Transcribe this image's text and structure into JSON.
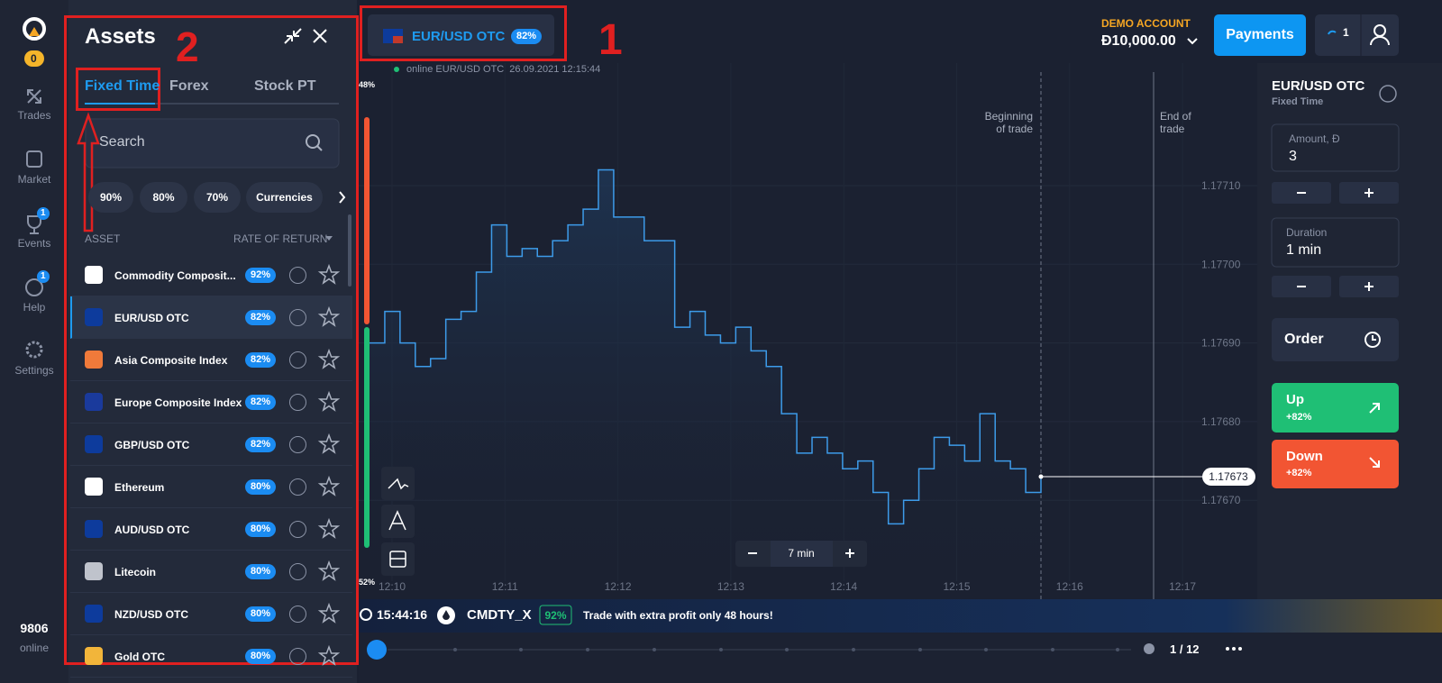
{
  "sidebar": {
    "logo_badge": "0",
    "items": [
      {
        "label": "Trades"
      },
      {
        "label": "Market"
      },
      {
        "label": "Events",
        "badge": "1"
      },
      {
        "label": "Help",
        "badge": "1"
      },
      {
        "label": "Settings"
      }
    ],
    "online_count": "9806",
    "online_label": "online"
  },
  "assets_panel": {
    "title": "Assets",
    "tabs": [
      "Fixed Time",
      "Forex",
      "Stock PT"
    ],
    "search_placeholder": "Search",
    "filters": [
      "90%",
      "80%",
      "70%",
      "Currencies"
    ],
    "columns": [
      "ASSET",
      "RATE OF RETURN"
    ],
    "rows": [
      {
        "name": "Commodity Composit...",
        "rate": "92%"
      },
      {
        "name": "EUR/USD OTC",
        "rate": "82%"
      },
      {
        "name": "Asia Composite Index",
        "rate": "82%"
      },
      {
        "name": "Europe Composite Index",
        "rate": "82%"
      },
      {
        "name": "GBP/USD OTC",
        "rate": "82%"
      },
      {
        "name": "Ethereum",
        "rate": "80%"
      },
      {
        "name": "AUD/USD OTC",
        "rate": "80%"
      },
      {
        "name": "Litecoin",
        "rate": "80%"
      },
      {
        "name": "NZD/USD OTC",
        "rate": "80%"
      },
      {
        "name": "Gold OTC",
        "rate": "80%"
      }
    ]
  },
  "top_bar": {
    "asset": "EUR/USD OTC",
    "rate": "82%",
    "status": "online EUR/USD OTC  26.09.2021 12:15:44",
    "account_label": "DEMO ACCOUNT",
    "balance": "Đ10,000.00",
    "payments": "Payments",
    "trades_count": "1"
  },
  "chart": {
    "type": "line",
    "color": "#3d9be9",
    "sentiment_top": "48%",
    "sentiment_bottom": "52%",
    "begin_marker": [
      "Beginning",
      "of trade"
    ],
    "end_marker": [
      "End of",
      "trade"
    ],
    "xticks": [
      "12:10",
      "12:11",
      "12:12",
      "12:13",
      "12:14",
      "12:15",
      "12:16",
      "12:17"
    ],
    "ylim": [
      1.17658,
      1.17725
    ],
    "yticks": [
      {
        "value": 1.1767,
        "label": "1.17670"
      },
      {
        "value": 1.1768,
        "label": "1.17680"
      },
      {
        "value": 1.1769,
        "label": "1.17690"
      },
      {
        "value": 1.177,
        "label": "1.17700"
      },
      {
        "value": 1.1771,
        "label": "1.17710"
      }
    ],
    "values": [
      1.1769,
      1.17694,
      1.1769,
      1.17687,
      1.17688,
      1.17693,
      1.17694,
      1.17699,
      1.17705,
      1.17701,
      1.17702,
      1.17701,
      1.17703,
      1.17705,
      1.17707,
      1.17712,
      1.17706,
      1.17706,
      1.17703,
      1.17703,
      1.17692,
      1.17694,
      1.17691,
      1.1769,
      1.17692,
      1.17689,
      1.17687,
      1.17681,
      1.17676,
      1.17678,
      1.17676,
      1.17674,
      1.17675,
      1.17671,
      1.17667,
      1.1767,
      1.17674,
      1.17678,
      1.17677,
      1.17675,
      1.17681,
      1.17675,
      1.17674,
      1.17671,
      1.17673
    ],
    "timeframe": "7 min"
  },
  "right_panel": {
    "asset": "EUR/USD OTC",
    "mode": "Fixed Time",
    "amount_label": "Amount, Đ",
    "amount": "3",
    "duration_label": "Duration",
    "duration": "1 min",
    "order": "Order",
    "up": "Up",
    "up_rate": "+82%",
    "down": "Down",
    "down_rate": "+82%"
  },
  "ticker": {
    "time": "15:44:16",
    "symbol": "CMDTY_X",
    "rate": "92%",
    "message": "Trade with extra profit only 48 hours!"
  },
  "bottom_bar": {
    "pager": "1 / 12"
  },
  "annotations": {
    "label_1": "1",
    "label_2": "2"
  }
}
